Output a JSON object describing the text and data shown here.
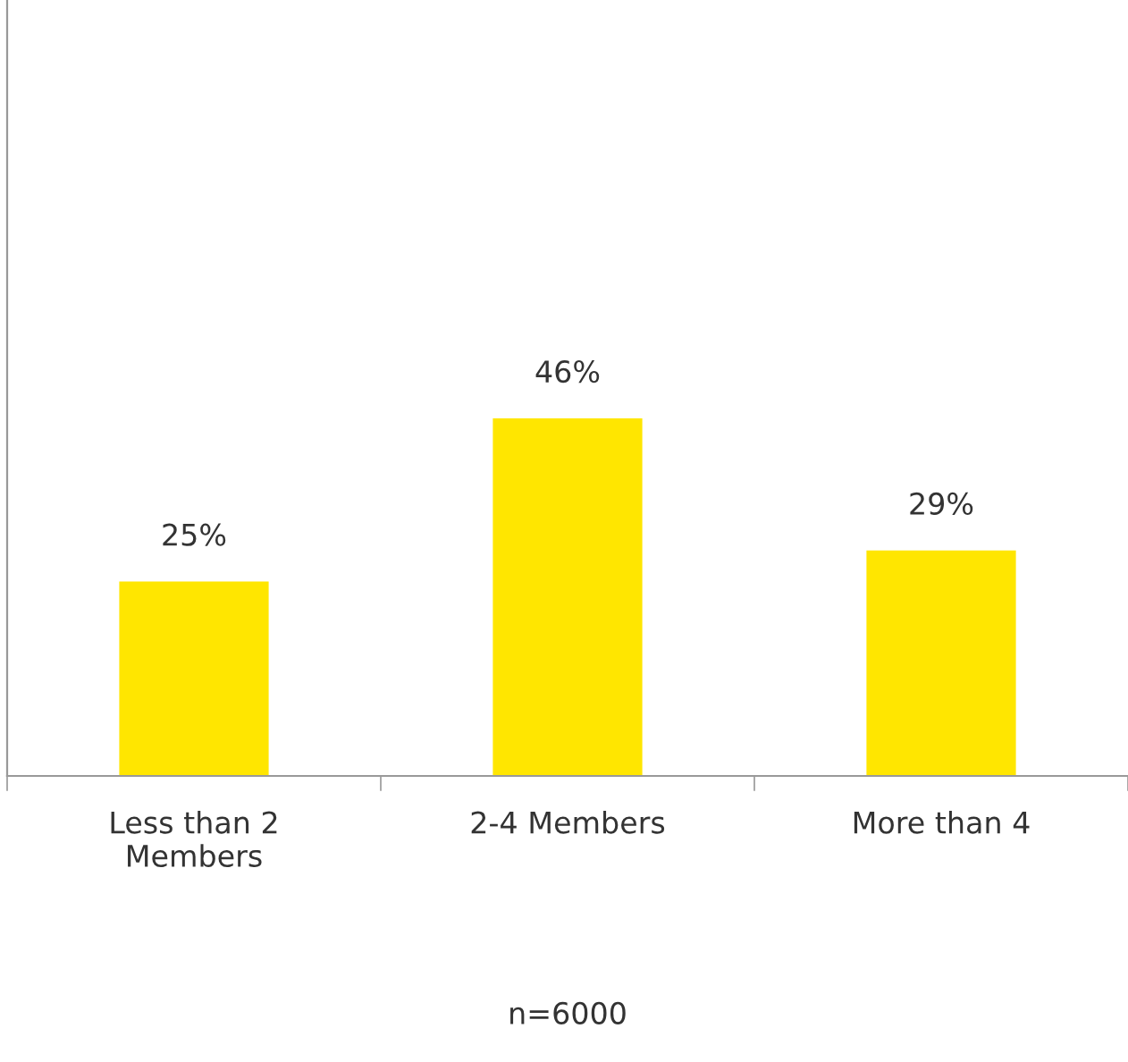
{
  "chart_data": {
    "type": "bar",
    "categories": [
      "Less than 2\nMembers",
      "2-4 Members",
      "More than 4"
    ],
    "values": [
      25,
      46,
      29
    ],
    "color": "#ffe600",
    "value_labels": [
      "25%",
      "46%",
      "29%"
    ],
    "grid": false,
    "legend": false,
    "tick_labels": "x",
    "annotations": [
      "n=6000"
    ]
  }
}
